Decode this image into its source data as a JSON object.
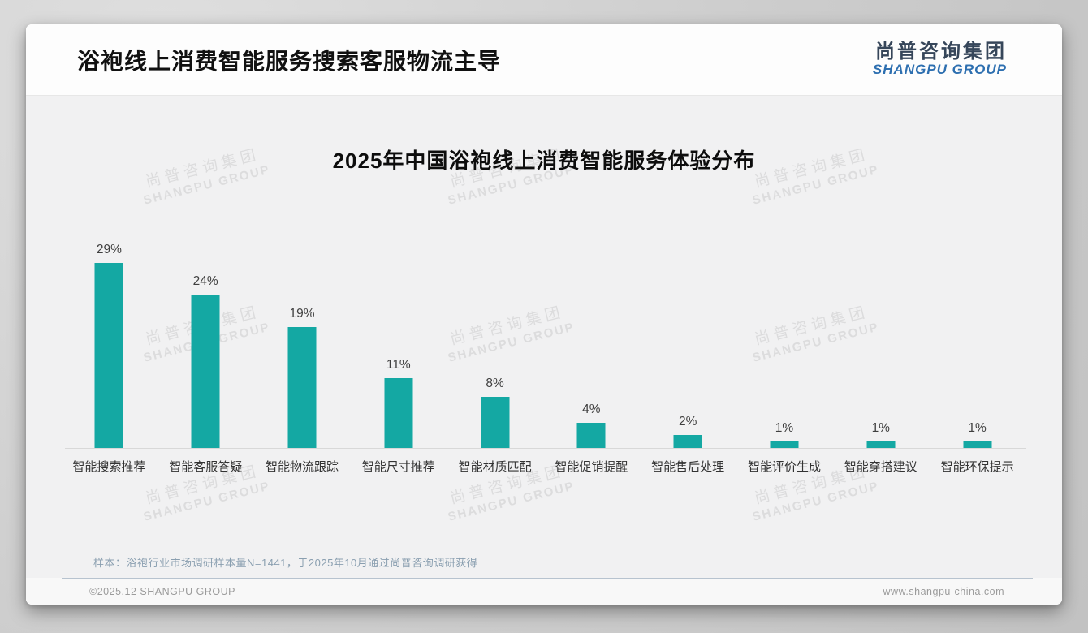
{
  "header": {
    "title": "浴袍线上消费智能服务搜索客服物流主导",
    "logo_cn": "尚普咨询集团",
    "logo_en": "SHANGPU GROUP"
  },
  "chart_data": {
    "type": "bar",
    "title": "2025年中国浴袍线上消费智能服务体验分布",
    "categories": [
      "智能搜索推荐",
      "智能客服答疑",
      "智能物流跟踪",
      "智能尺寸推荐",
      "智能材质匹配",
      "智能促销提醒",
      "智能售后处理",
      "智能评价生成",
      "智能穿搭建议",
      "智能环保提示"
    ],
    "values": [
      29,
      24,
      19,
      11,
      8,
      4,
      2,
      1,
      1,
      1
    ],
    "value_suffix": "%",
    "xlabel": "",
    "ylabel": "",
    "ylim": [
      0,
      30
    ],
    "grid": false,
    "legend": "none",
    "bar_color": "#14A8A3"
  },
  "watermark": {
    "line1": "尚普咨询集团",
    "line2": "SHANGPU GROUP"
  },
  "note": "样本：浴袍行业市场调研样本量N=1441，于2025年10月通过尚普咨询调研获得",
  "footer": {
    "copyright": "©2025.12 SHANGPU GROUP",
    "website": "www.shangpu-china.com"
  },
  "colors": {
    "bar": "#14A8A3",
    "logo_navy": "#36465A",
    "logo_blue": "#2D6FB0"
  }
}
